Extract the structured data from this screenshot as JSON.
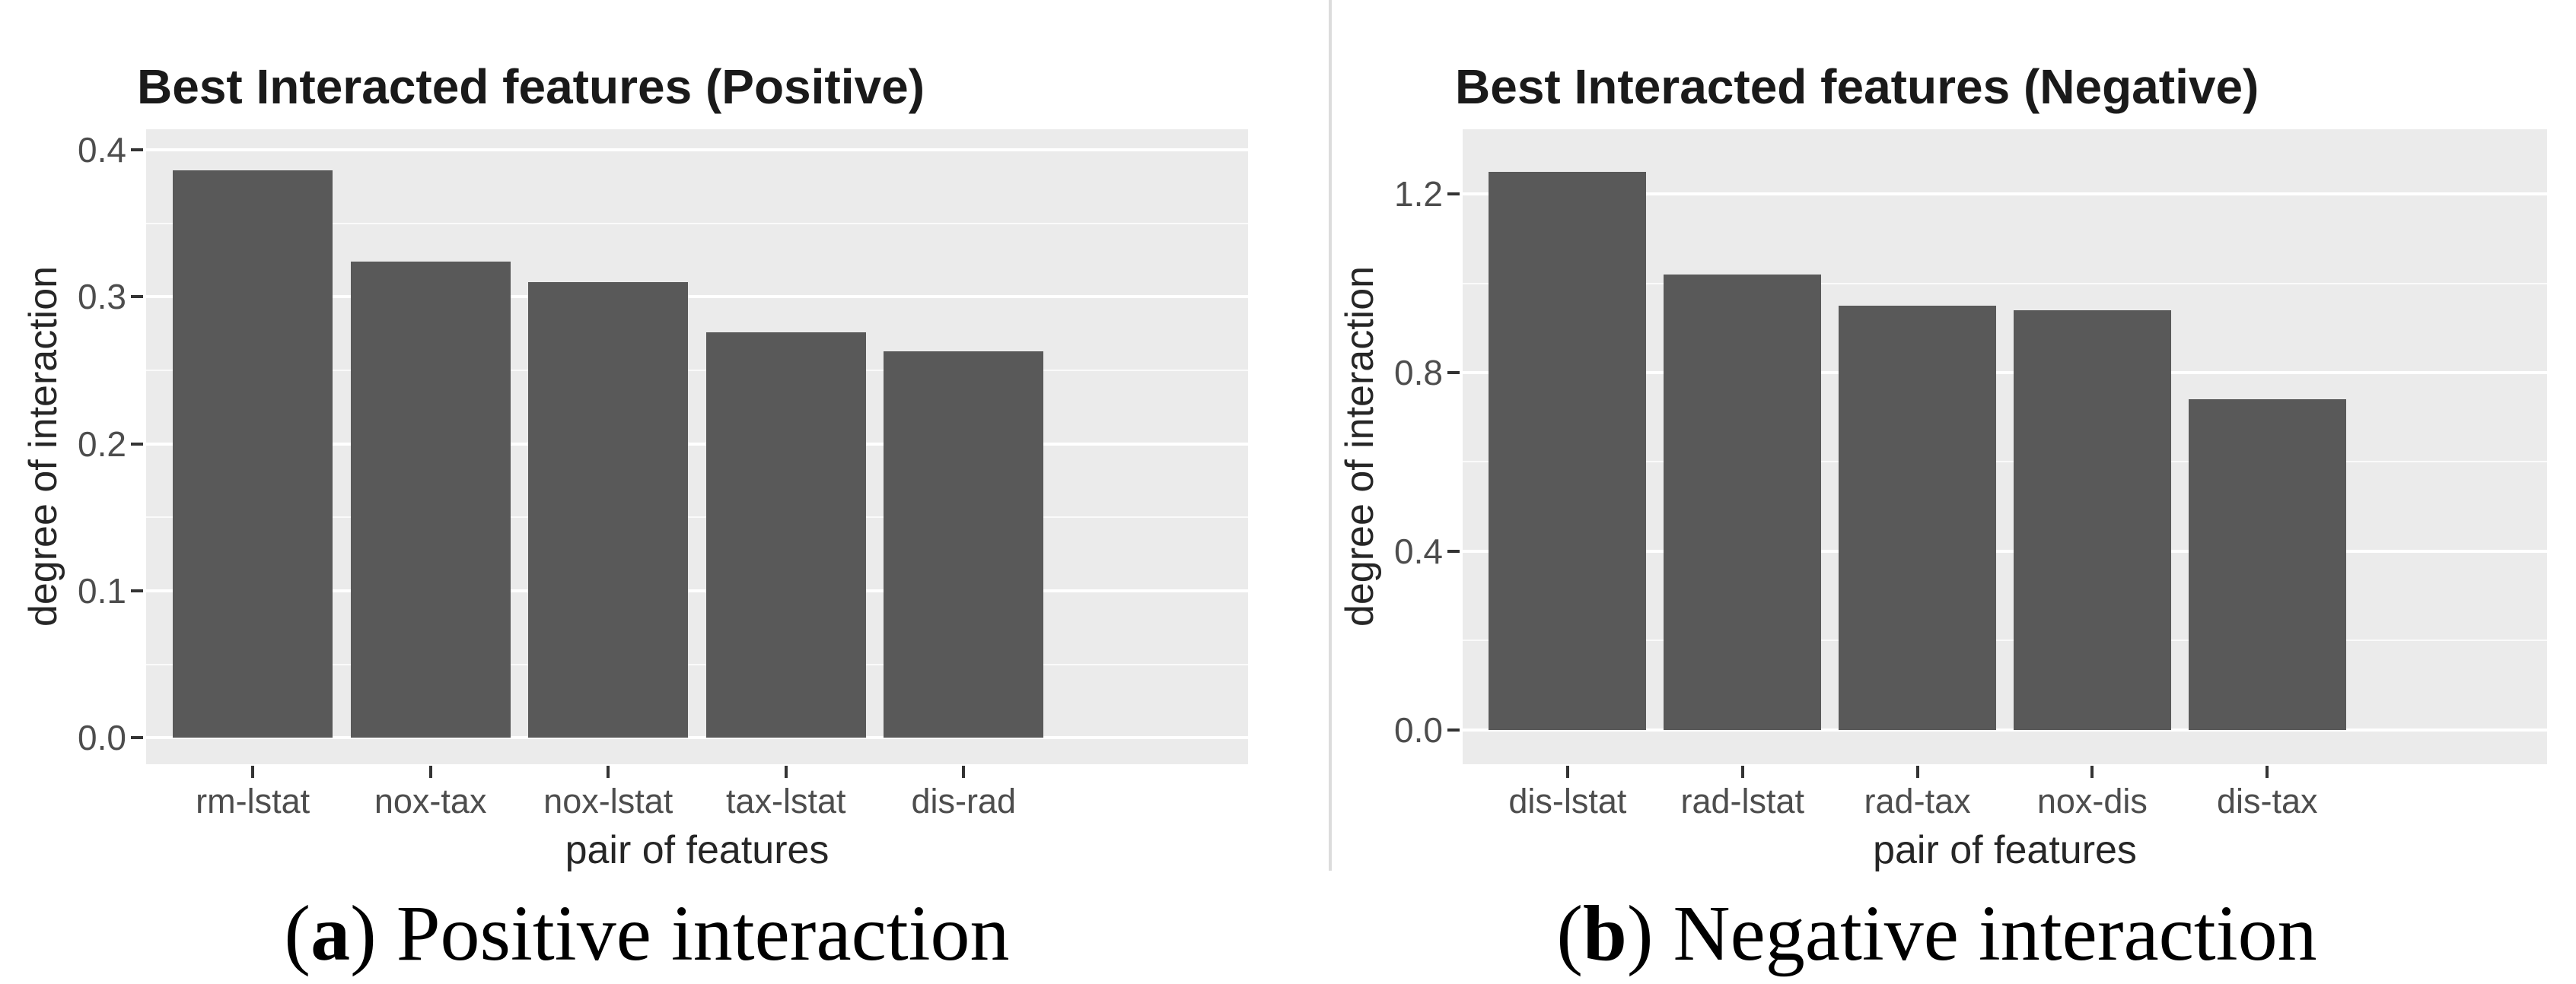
{
  "style": {
    "page_bg": "#ffffff",
    "panel_bg": "#ebebeb",
    "bar_fill": "#595959",
    "gridline": "#ffffff",
    "tick_label_color": "#4d4d4d",
    "axis_title_color": "#262626",
    "title_color": "#1a1a1a",
    "divider_color": "#dcdcdc"
  },
  "chart_data": [
    {
      "type": "bar",
      "title": "Best Interacted features (Positive)",
      "categories": [
        "rm-lstat",
        "nox-tax",
        "nox-lstat",
        "tax-lstat",
        "dis-rad"
      ],
      "values": [
        0.386,
        0.324,
        0.31,
        0.276,
        0.263
      ],
      "xlabel": "pair of features",
      "ylabel": "degree of interaction",
      "ylim": [
        -0.018,
        0.414
      ],
      "yticks": [
        0.0,
        0.1,
        0.2,
        0.3,
        0.4
      ],
      "ytick_labels": [
        "0.0",
        "0.1",
        "0.2",
        "0.3",
        "0.4"
      ],
      "yminor": [
        0.05,
        0.15,
        0.25,
        0.35
      ],
      "grid": "on",
      "legend": "none",
      "caption": {
        "open": "(",
        "label": "a",
        "close": ")",
        "text": "Positive interaction"
      }
    },
    {
      "type": "bar",
      "title": "Best Interacted features (Negative)",
      "categories": [
        "dis-lstat",
        "rad-lstat",
        "rad-tax",
        "nox-dis",
        "dis-tax"
      ],
      "values": [
        1.25,
        1.02,
        0.95,
        0.94,
        0.74
      ],
      "xlabel": "pair of features",
      "ylabel": "degree of interaction",
      "ylim": [
        -0.077,
        1.345
      ],
      "yticks": [
        0.0,
        0.4,
        0.8,
        1.2
      ],
      "ytick_labels": [
        "0.0",
        "0.4",
        "0.8",
        "1.2"
      ],
      "yminor": [
        0.2,
        0.6,
        1.0
      ],
      "grid": "on",
      "legend": "none",
      "caption": {
        "open": "(",
        "label": "b",
        "close": ")",
        "text": "Negative interaction"
      }
    }
  ]
}
